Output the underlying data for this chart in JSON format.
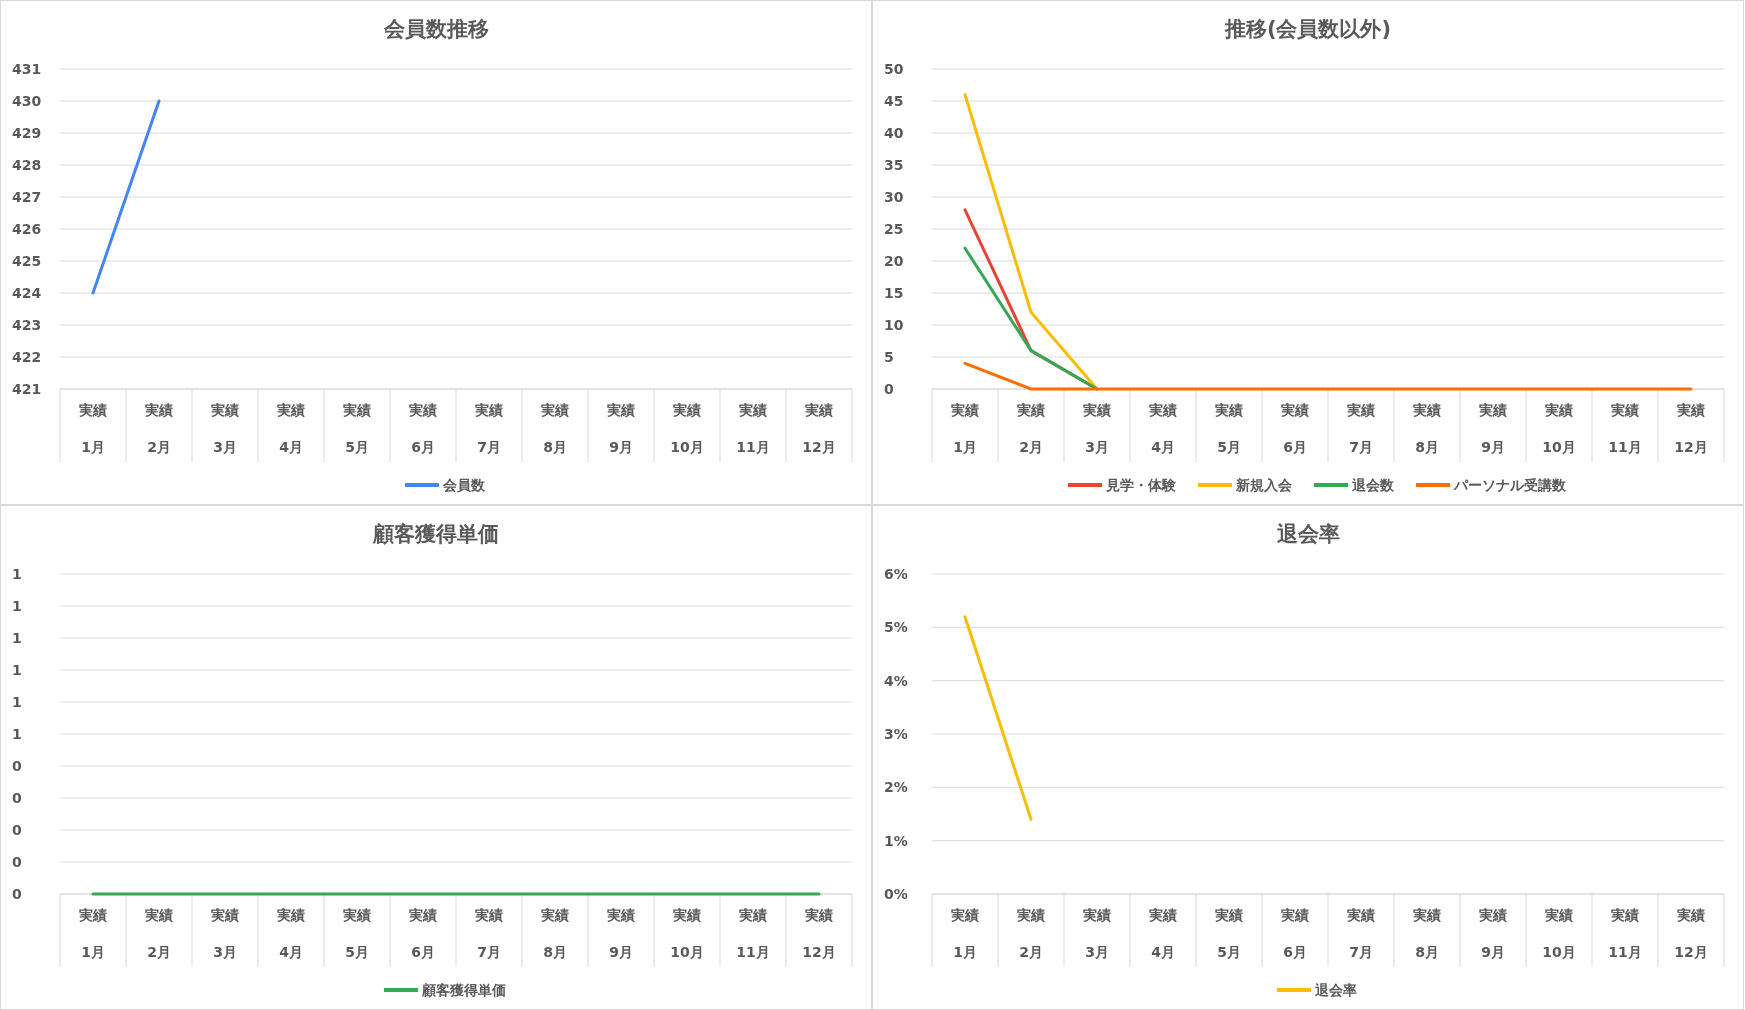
{
  "chart_data": [
    {
      "type": "line",
      "title": "会員数推移",
      "categories": [
        "実績\n1月",
        "実績\n2月",
        "実績\n3月",
        "実績\n4月",
        "実績\n5月",
        "実績\n6月",
        "実績\n7月",
        "実績\n8月",
        "実績\n9月",
        "実績\n10月",
        "実績\n11月",
        "実績\n12月"
      ],
      "series": [
        {
          "name": "会員数",
          "color": "#4285f4",
          "values": [
            424,
            430,
            null,
            null,
            null,
            null,
            null,
            null,
            null,
            null,
            null,
            null
          ]
        }
      ],
      "ylim": [
        421,
        431
      ],
      "yticks": [
        421,
        422,
        423,
        424,
        425,
        426,
        427,
        428,
        429,
        430,
        431
      ],
      "grid": "y",
      "legend": "bottom"
    },
    {
      "type": "line",
      "title": "推移(会員数以外)",
      "categories": [
        "実績\n1月",
        "実績\n2月",
        "実績\n3月",
        "実績\n4月",
        "実績\n5月",
        "実績\n6月",
        "実績\n7月",
        "実績\n8月",
        "実績\n9月",
        "実績\n10月",
        "実績\n11月",
        "実績\n12月"
      ],
      "series": [
        {
          "name": "見学・体験",
          "color": "#ea4335",
          "values": [
            28,
            6,
            0,
            null,
            null,
            null,
            null,
            null,
            null,
            null,
            null,
            null
          ]
        },
        {
          "name": "新規入会",
          "color": "#fbbc04",
          "values": [
            46,
            12,
            0,
            null,
            null,
            null,
            null,
            null,
            null,
            null,
            null,
            null
          ]
        },
        {
          "name": "退会数",
          "color": "#34a853",
          "values": [
            22,
            6,
            0,
            null,
            null,
            null,
            null,
            null,
            null,
            null,
            null,
            null
          ]
        },
        {
          "name": "パーソナル受講数",
          "color": "#ff6d01",
          "values": [
            4,
            0,
            0,
            0,
            0,
            0,
            0,
            0,
            0,
            0,
            0,
            0
          ]
        }
      ],
      "ylim": [
        0,
        50
      ],
      "yticks": [
        0,
        5,
        10,
        15,
        20,
        25,
        30,
        35,
        40,
        45,
        50
      ],
      "grid": "y",
      "legend": "bottom"
    },
    {
      "type": "line",
      "title": "顧客獲得単価",
      "categories": [
        "実績\n1月",
        "実績\n2月",
        "実績\n3月",
        "実績\n4月",
        "実績\n5月",
        "実績\n6月",
        "実績\n7月",
        "実績\n8月",
        "実績\n9月",
        "実績\n10月",
        "実績\n11月",
        "実績\n12月"
      ],
      "series": [
        {
          "name": "顧客獲得単価",
          "color": "#34a853",
          "values": [
            0,
            0,
            0,
            0,
            0,
            0,
            0,
            0,
            0,
            0,
            0,
            0
          ]
        }
      ],
      "ylim": [
        0,
        1
      ],
      "yticks": [
        0,
        {
          "value": 0.1,
          "label": "0"
        },
        {
          "value": 0.2,
          "label": "0"
        },
        {
          "value": 0.3,
          "label": "0"
        },
        {
          "value": 0.4,
          "label": "0"
        },
        {
          "value": 0.5,
          "label": "1"
        },
        {
          "value": 0.6,
          "label": "1"
        },
        {
          "value": 0.7,
          "label": "1"
        },
        {
          "value": 0.8,
          "label": "1"
        },
        {
          "value": 0.9,
          "label": "1"
        },
        1
      ],
      "grid": "y",
      "legend": "bottom"
    },
    {
      "type": "line",
      "title": "退会率",
      "categories": [
        "実績\n1月",
        "実績\n2月",
        "実績\n3月",
        "実績\n4月",
        "実績\n5月",
        "実績\n6月",
        "実績\n7月",
        "実績\n8月",
        "実績\n9月",
        "実績\n10月",
        "実績\n11月",
        "実績\n12月"
      ],
      "series": [
        {
          "name": "退会率",
          "color": "#fbbc04",
          "values": [
            5.2,
            1.4,
            null,
            null,
            null,
            null,
            null,
            null,
            null,
            null,
            null,
            null
          ]
        }
      ],
      "ylim": [
        0,
        6
      ],
      "yticks": [
        {
          "value": 0,
          "label": "0%"
        },
        {
          "value": 1,
          "label": "1%"
        },
        {
          "value": 2,
          "label": "2%"
        },
        {
          "value": 3,
          "label": "3%"
        },
        {
          "value": 4,
          "label": "4%"
        },
        {
          "value": 5,
          "label": "5%"
        },
        {
          "value": 6,
          "label": "6%"
        }
      ],
      "grid": "y",
      "legend": "bottom"
    }
  ]
}
